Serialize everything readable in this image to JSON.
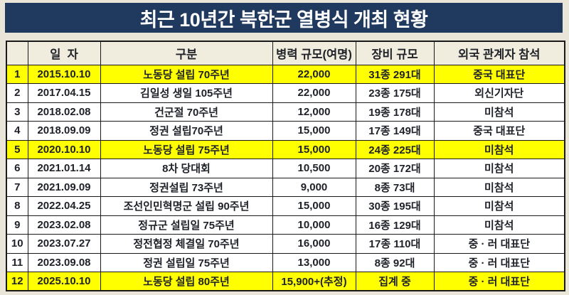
{
  "title": "최근 10년간 북한군 열병식 개최 현황",
  "colors": {
    "page_bg": "#E9E5D8",
    "title_bg": "#1F3A5E",
    "title_text": "#FFFFFF",
    "header_bg": "#F1EDDE",
    "row_bg": "#FFFFFF",
    "highlight_bg": "#FFFF00",
    "border": "#1A1A1A",
    "text": "#1E2128"
  },
  "chart_data": {
    "type": "table",
    "title": "최근 10년간 북한군 열병식 개최 현황",
    "columns": [
      "",
      "일  자",
      "구분",
      "병력 규모(여명)",
      "장비 규모",
      "외국 관계자 참석"
    ],
    "rows": [
      {
        "no": "1",
        "date": "2015.10.10",
        "category": "노동당 설립 70주년",
        "troops": "22,000",
        "equipment": "31종 291대",
        "attendance": "중국 대표단",
        "highlight": true
      },
      {
        "no": "2",
        "date": "2017.04.15",
        "category": "김일성 생일 105주년",
        "troops": "22,000",
        "equipment": "23종 175대",
        "attendance": "외신기자단",
        "highlight": false
      },
      {
        "no": "3",
        "date": "2018.02.08",
        "category": "건군절 70주년",
        "troops": "12,000",
        "equipment": "19종 178대",
        "attendance": "미참석",
        "highlight": false
      },
      {
        "no": "4",
        "date": "2018.09.09",
        "category": "정권 설립70주년",
        "troops": "15,000",
        "equipment": "17종 149대",
        "attendance": "중국 대표단",
        "highlight": false
      },
      {
        "no": "5",
        "date": "2020.10.10",
        "category": "노동당 설립 75주년",
        "troops": "15,000",
        "equipment": "24종 225대",
        "attendance": "미참석",
        "highlight": true
      },
      {
        "no": "6",
        "date": "2021.01.14",
        "category": "8차 당대회",
        "troops": "10,500",
        "equipment": "20종 172대",
        "attendance": "미참석",
        "highlight": false
      },
      {
        "no": "7",
        "date": "2021.09.09",
        "category": "정권설립 73주년",
        "troops": "9,000",
        "equipment": "8종 73대",
        "attendance": "미참석",
        "highlight": false
      },
      {
        "no": "8",
        "date": "2022.04.25",
        "category": "조선인민혁명군 설립 90주년",
        "troops": "15,000",
        "equipment": "30종 195대",
        "attendance": "미참석",
        "highlight": false
      },
      {
        "no": "9",
        "date": "2023.02.08",
        "category": "정규군 설립일 75주년",
        "troops": "10,000",
        "equipment": "16종 129대",
        "attendance": "미참석",
        "highlight": false
      },
      {
        "no": "10",
        "date": "2023.07.27",
        "category": "정전협정 체결일 70주년",
        "troops": "16,000",
        "equipment": "17종 110대",
        "attendance": "중 · 러 대표단",
        "highlight": false
      },
      {
        "no": "11",
        "date": "2023.09.08",
        "category": "정권 설립일 75주년",
        "troops": "13,000",
        "equipment": "8종 92대",
        "attendance": "중 · 러 대표단",
        "highlight": false
      },
      {
        "no": "12",
        "date": "2025.10.10",
        "category": "노동당 설립 80주년",
        "troops": "15,900+(추정)",
        "equipment": "집계 중",
        "attendance": "중 · 러 대표단",
        "highlight": true
      }
    ]
  }
}
